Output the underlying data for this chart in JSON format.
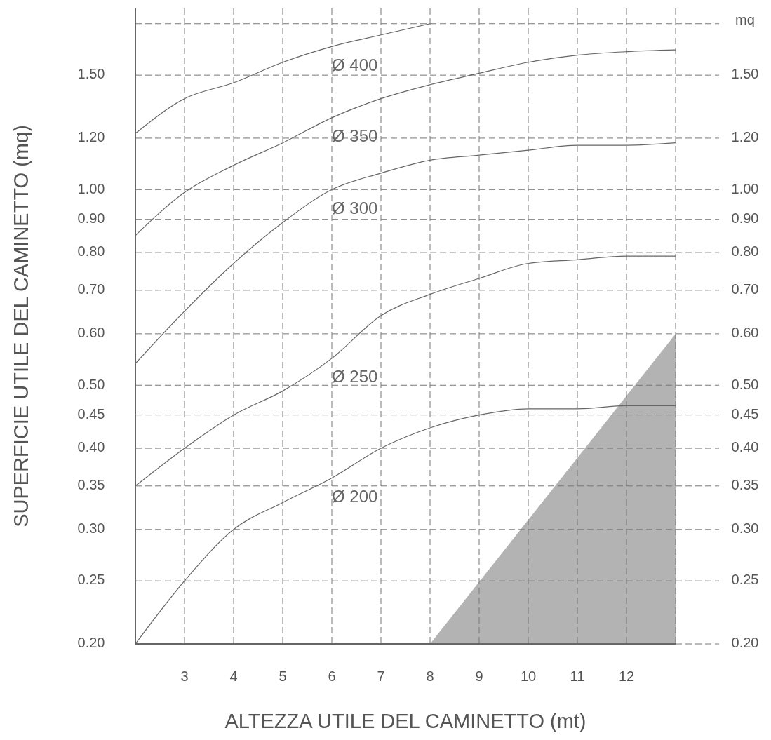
{
  "chart_data": {
    "type": "line",
    "xlabel": "ALTEZZA UTILE DEL CAMINETTO (mt)",
    "ylabel": "SUPERFICIE UTILE DEL CAMINETTO (mq)",
    "y2label": "mq",
    "x": [
      2,
      3,
      4,
      5,
      6,
      7,
      8,
      9,
      10,
      11,
      12,
      13
    ],
    "xlim": [
      2,
      13
    ],
    "xticks": [
      3,
      4,
      5,
      6,
      7,
      8,
      9,
      10,
      11,
      12
    ],
    "ylim": [
      0.2,
      1.9
    ],
    "yticks": [
      {
        "value": 0.2,
        "label": "0.20"
      },
      {
        "value": 0.25,
        "label": "0.25"
      },
      {
        "value": 0.3,
        "label": "0.30"
      },
      {
        "value": 0.35,
        "label": "0.35"
      },
      {
        "value": 0.4,
        "label": "0.40"
      },
      {
        "value": 0.45,
        "label": "0.45"
      },
      {
        "value": 0.5,
        "label": "0.50"
      },
      {
        "value": 0.6,
        "label": "0.60"
      },
      {
        "value": 0.7,
        "label": "0.70"
      },
      {
        "value": 0.8,
        "label": "0.80"
      },
      {
        "value": 0.9,
        "label": "0.90"
      },
      {
        "value": 1,
        "label": "1.00"
      },
      {
        "value": 1.2,
        "label": "1.20"
      },
      {
        "value": 1.5,
        "label": "1.50"
      },
      {
        "value": 1.8,
        "label": null
      }
    ],
    "grid": true,
    "log": true,
    "legend": false,
    "marker": "none",
    "line_style": "solid",
    "series": [
      {
        "name": "Ø 400",
        "color": "#666666",
        "x": [
          2,
          3,
          4,
          5,
          6,
          7,
          8
        ],
        "values": [
          1.22,
          1.38,
          1.46,
          1.57,
          1.66,
          1.73,
          1.8
        ]
      },
      {
        "name": "Ø 350",
        "color": "#666666",
        "values": [
          0.85,
          0.99,
          1.09,
          1.18,
          1.29,
          1.38,
          1.45,
          1.51,
          1.57,
          1.61,
          1.63,
          1.64
        ]
      },
      {
        "name": "Ø 300",
        "color": "#666666",
        "values": [
          0.54,
          0.65,
          0.77,
          0.89,
          1.0,
          1.06,
          1.11,
          1.13,
          1.15,
          1.17,
          1.17,
          1.18
        ]
      },
      {
        "name": "Ø 250",
        "color": "#666666",
        "values": [
          0.35,
          0.4,
          0.45,
          0.49,
          0.55,
          0.64,
          0.69,
          0.73,
          0.77,
          0.78,
          0.79,
          0.79
        ]
      },
      {
        "name": "Ø 200",
        "color": "#666666",
        "values": [
          0.2,
          0.25,
          0.3,
          0.33,
          0.36,
          0.4,
          0.43,
          0.45,
          0.46,
          0.46,
          0.465,
          0.465
        ]
      },
      {
        "type": "area",
        "color": "#b3b3b3",
        "x": [
          8,
          13
        ],
        "values": [
          0.2,
          0.6
        ]
      }
    ]
  }
}
